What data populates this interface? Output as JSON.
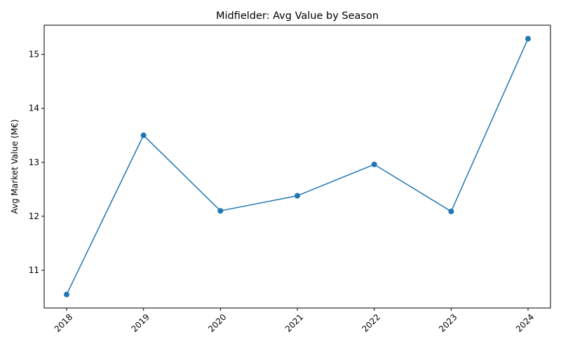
{
  "chart_data": {
    "type": "line",
    "title": "Midfielder: Avg Value by Season",
    "xlabel": "",
    "ylabel": "Avg Market Value (M€)",
    "categories": [
      "2018",
      "2019",
      "2020",
      "2021",
      "2022",
      "2023",
      "2024"
    ],
    "series": [
      {
        "name": "Midfielder",
        "values": [
          10.55,
          13.5,
          12.1,
          12.38,
          12.96,
          12.09,
          15.29
        ],
        "color": "#1f77b4"
      }
    ],
    "ylim": [
      10.3,
      15.54
    ],
    "yticks": [
      11,
      12,
      13,
      14,
      15
    ],
    "grid": false,
    "legend": "none"
  }
}
